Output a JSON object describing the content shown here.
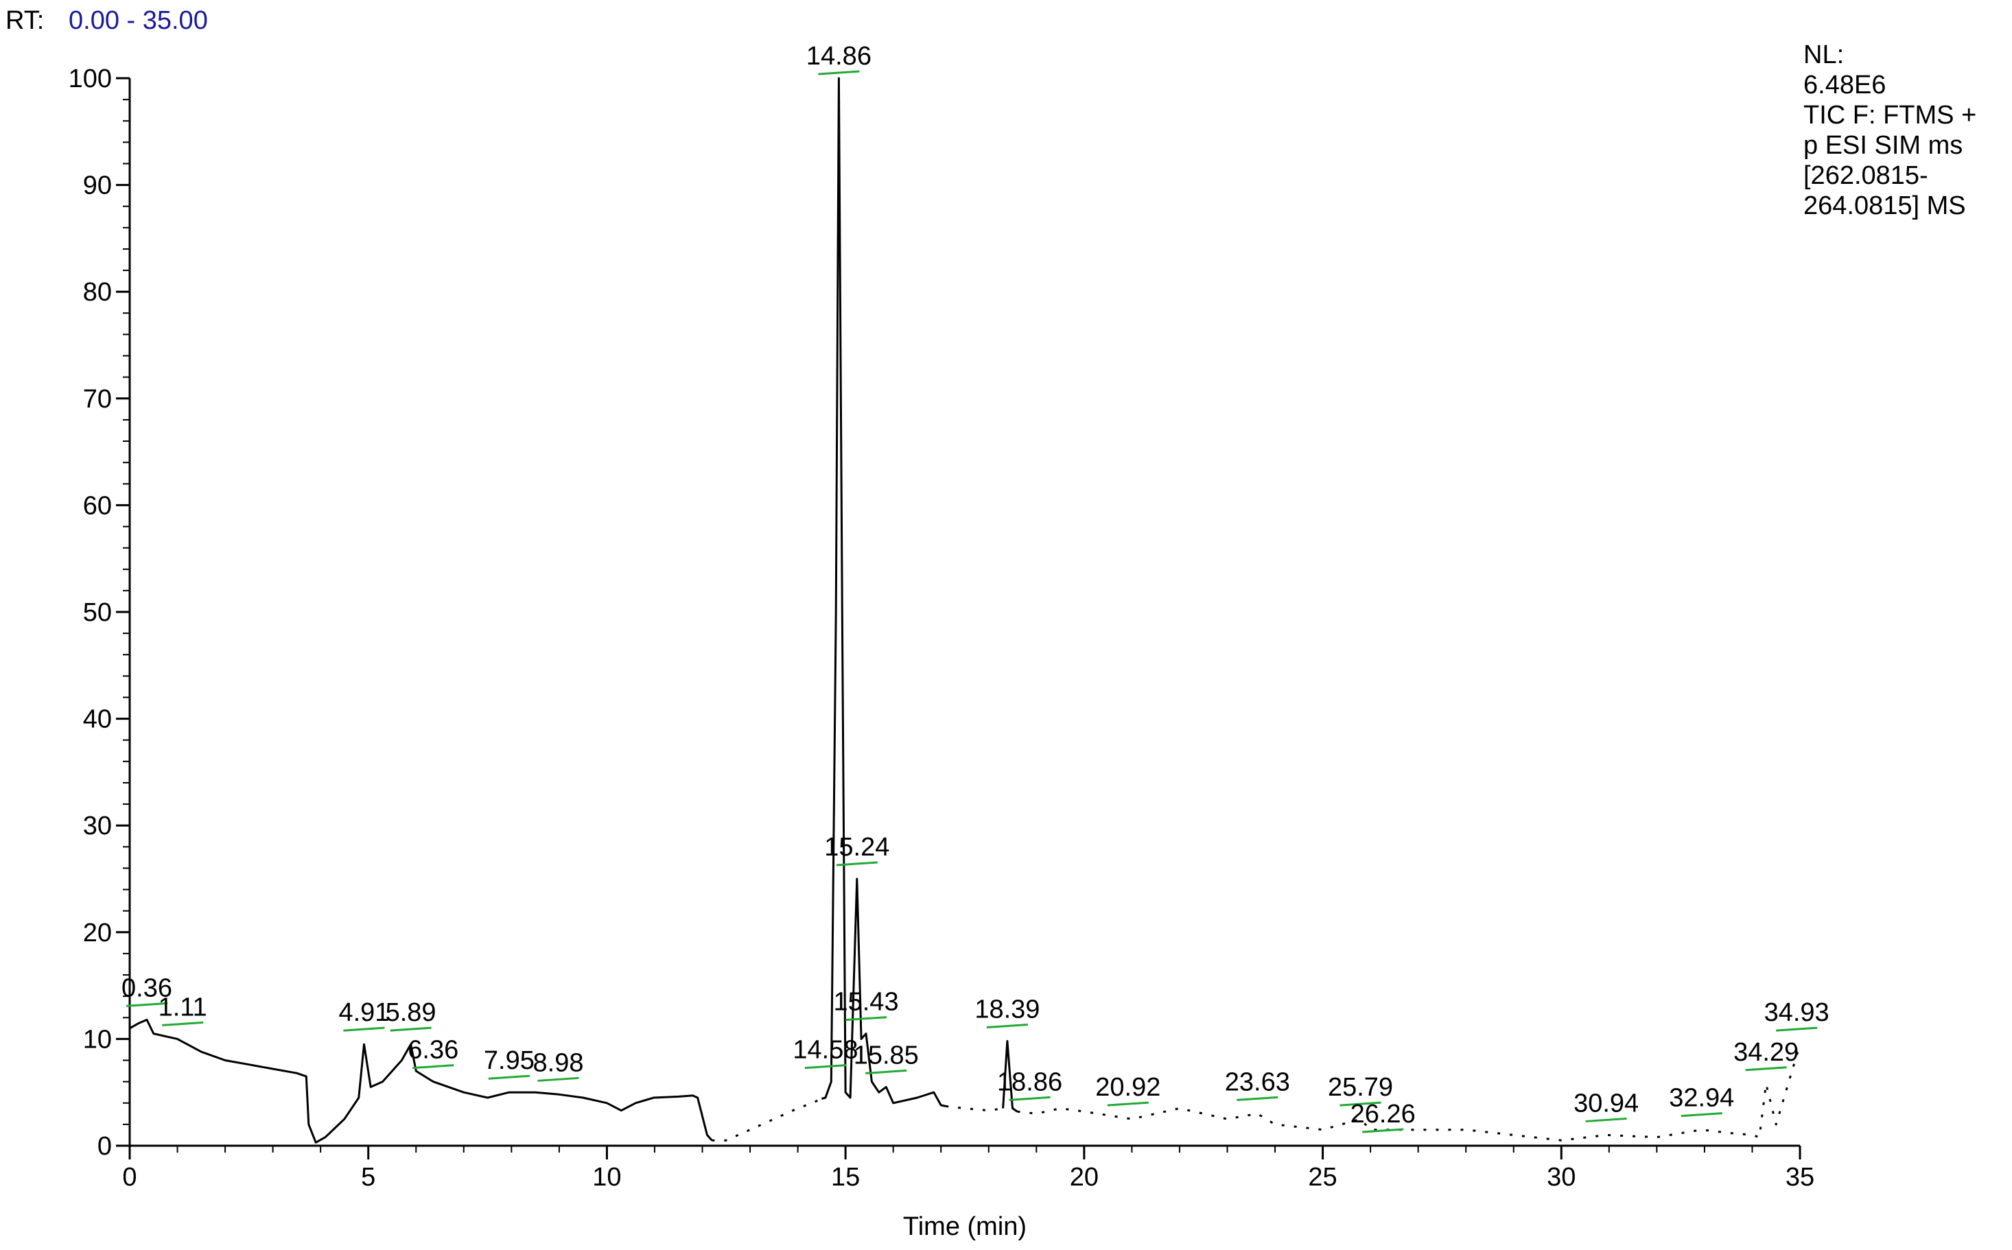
{
  "header": {
    "rt_label": "RT:",
    "rt_range": "0.00 - 35.00",
    "info": [
      "NL:",
      "6.48E6",
      "TIC F: FTMS +",
      "p ESI SIM ms",
      "[262.0815-",
      "264.0815]  MS"
    ]
  },
  "chart_data": {
    "type": "line",
    "x_label": "Time (min)",
    "xlim": [
      0,
      35
    ],
    "xticks": [
      0,
      5,
      10,
      15,
      20,
      25,
      30,
      35
    ],
    "ylim": [
      0,
      100
    ],
    "yticks": [
      0,
      10,
      20,
      30,
      40,
      50,
      60,
      70,
      80,
      90,
      100
    ],
    "series": [
      {
        "color": "#000000",
        "dashed": false,
        "x": [
          0,
          0.2,
          0.36,
          0.5,
          1,
          1.5,
          2,
          2.5,
          3,
          3.5,
          3.7,
          3.75,
          3.9,
          4.1,
          4.5,
          4.8,
          4.91,
          5.05,
          5.3,
          5.7,
          5.89,
          6,
          6.36,
          7,
          7.5,
          7.95,
          8.5,
          9,
          9.5,
          10,
          10.3,
          10.6,
          10.98,
          11.5,
          11.8,
          11.9,
          12.1,
          12.2
        ],
        "values": [
          11,
          11.5,
          11.8,
          10.5,
          10,
          8.8,
          8,
          7.6,
          7.2,
          6.8,
          6.5,
          2,
          0.3,
          0.8,
          2.5,
          4.5,
          9.5,
          5.5,
          6,
          8,
          9.5,
          7,
          6,
          5,
          4.5,
          5,
          5,
          4.8,
          4.5,
          4,
          3.3,
          4,
          4.5,
          4.6,
          4.7,
          4.5,
          1,
          0.5
        ]
      },
      {
        "color": "#000000",
        "dashed": true,
        "x": [
          12.2,
          12.5,
          13,
          13.5,
          14,
          14.3,
          14.5
        ],
        "values": [
          0.5,
          0.5,
          1.5,
          2.5,
          3.5,
          4,
          4.4
        ]
      },
      {
        "color": "#000000",
        "dashed": false,
        "x": [
          14.5,
          14.58,
          14.7,
          14.8,
          14.86,
          14.93,
          15,
          15.1,
          15.24,
          15.33,
          15.43,
          15.55,
          15.7,
          15.85,
          16,
          16.5,
          16.85,
          17,
          17.1
        ],
        "values": [
          4.4,
          4.5,
          6,
          50,
          100,
          50,
          5,
          4.5,
          25,
          10,
          10.5,
          6,
          5,
          5.5,
          4,
          4.5,
          5,
          3.8,
          3.7
        ]
      },
      {
        "color": "#000000",
        "dashed": true,
        "x": [
          17.1,
          17.5,
          18,
          18.3
        ],
        "values": [
          3.7,
          3.5,
          3.3,
          3.5
        ]
      },
      {
        "color": "#000000",
        "dashed": false,
        "x": [
          18.3,
          18.39,
          18.5,
          18.6
        ],
        "values": [
          3.5,
          9.8,
          3.5,
          3.2
        ]
      },
      {
        "color": "#000000",
        "dashed": true,
        "x": [
          18.6,
          19,
          19.5,
          20,
          21,
          22,
          23,
          23.63,
          24,
          25,
          25.79,
          26,
          27,
          28,
          29,
          30,
          30.94,
          32,
          32.94,
          33.5,
          34,
          34.15,
          34.29,
          34.5,
          35
        ],
        "values": [
          3.2,
          3,
          3.5,
          3.2,
          2.5,
          3.5,
          2.5,
          3,
          2,
          1.5,
          2.5,
          1.5,
          1.5,
          1.5,
          1,
          0.5,
          1,
          0.8,
          1.5,
          1.2,
          1,
          0.8,
          5.8,
          2,
          9.5
        ]
      }
    ],
    "peak_labels": [
      0.36,
      1.11,
      4.91,
      5.89,
      6.36,
      7.95,
      8.98,
      14.58,
      14.86,
      15.24,
      15.43,
      15.85,
      18.39,
      18.86,
      20.92,
      23.63,
      25.79,
      26.26,
      30.94,
      32.94,
      34.29,
      34.93
    ]
  }
}
